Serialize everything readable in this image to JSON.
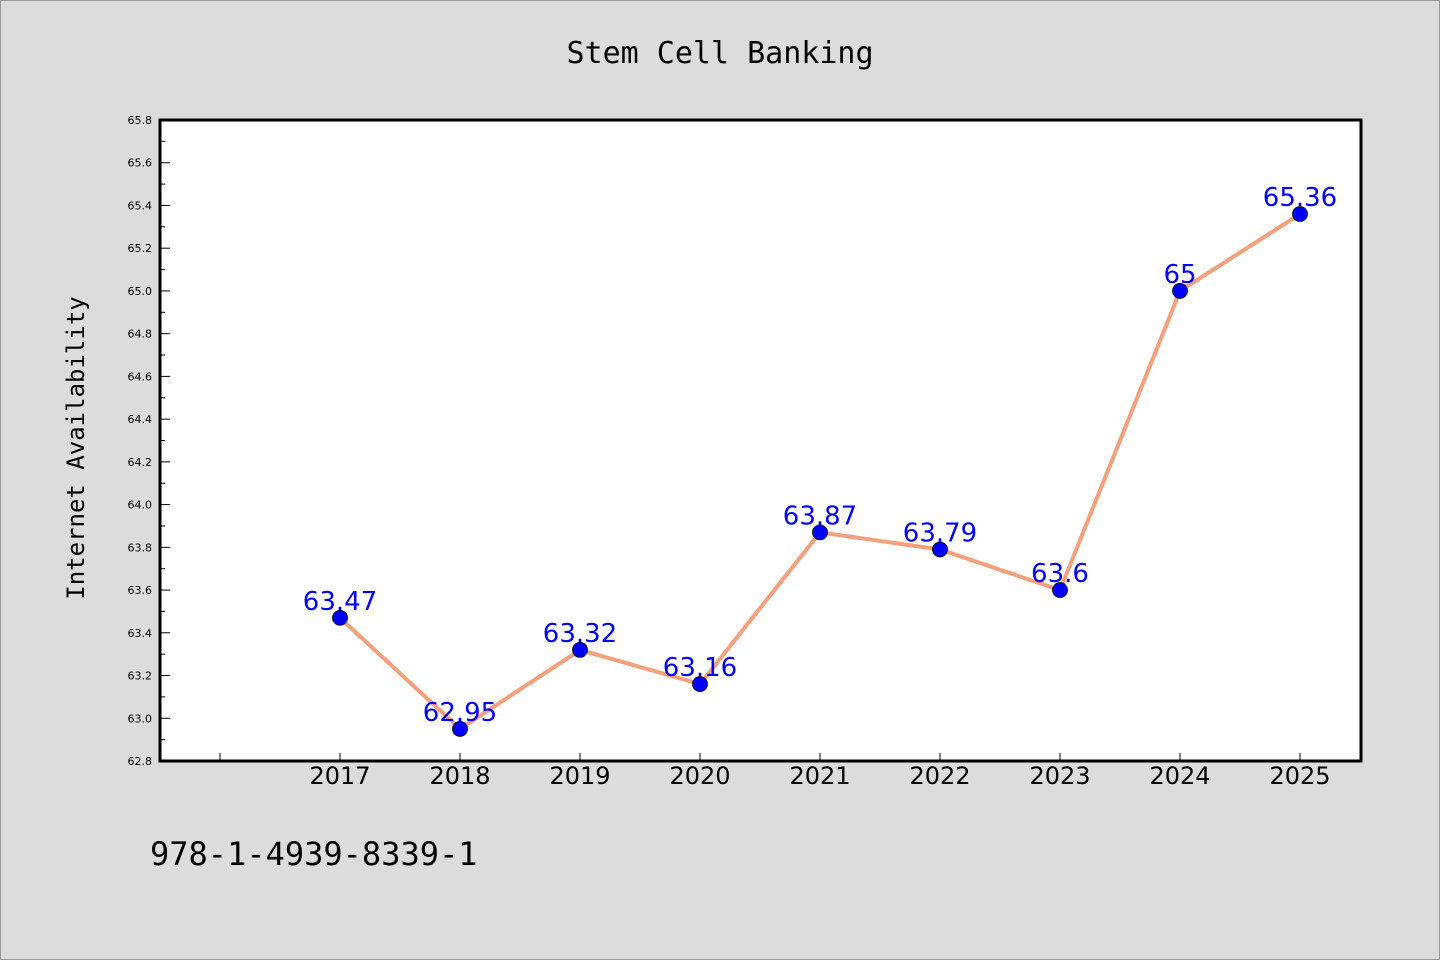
{
  "chart_data": {
    "type": "line",
    "title": "Stem Cell Banking",
    "xlabel": "",
    "ylabel": "Internet Availability",
    "categories": [
      "2017",
      "2018",
      "2019",
      "2020",
      "2021",
      "2022",
      "2023",
      "2024",
      "2025"
    ],
    "series": [
      {
        "values": [
          63.47,
          62.95,
          63.32,
          63.16,
          63.87,
          63.79,
          63.6,
          65,
          65.36
        ],
        "line_color": "#f4a07c",
        "marker_color": "#0000ff"
      }
    ],
    "data_labels": [
      "63.47",
      "62.95",
      "63.32",
      "63.16",
      "63.87",
      "63.79",
      "63.6",
      "65",
      "65.36"
    ],
    "ylim": [
      62.8,
      65.8
    ],
    "yticks": [
      "62.8",
      "63.0",
      "63.2",
      "63.4",
      "63.6",
      "63.8",
      "64.0",
      "64.2",
      "64.4",
      "64.6",
      "64.8",
      "65.0",
      "65.2",
      "65.4",
      "65.6",
      "65.8"
    ],
    "grid": false,
    "label_color": "#0000ff"
  },
  "footnote": "978-1-4939-8339-1",
  "colors": {
    "background": "#dcdcdc",
    "plot_background": "#ffffff"
  }
}
